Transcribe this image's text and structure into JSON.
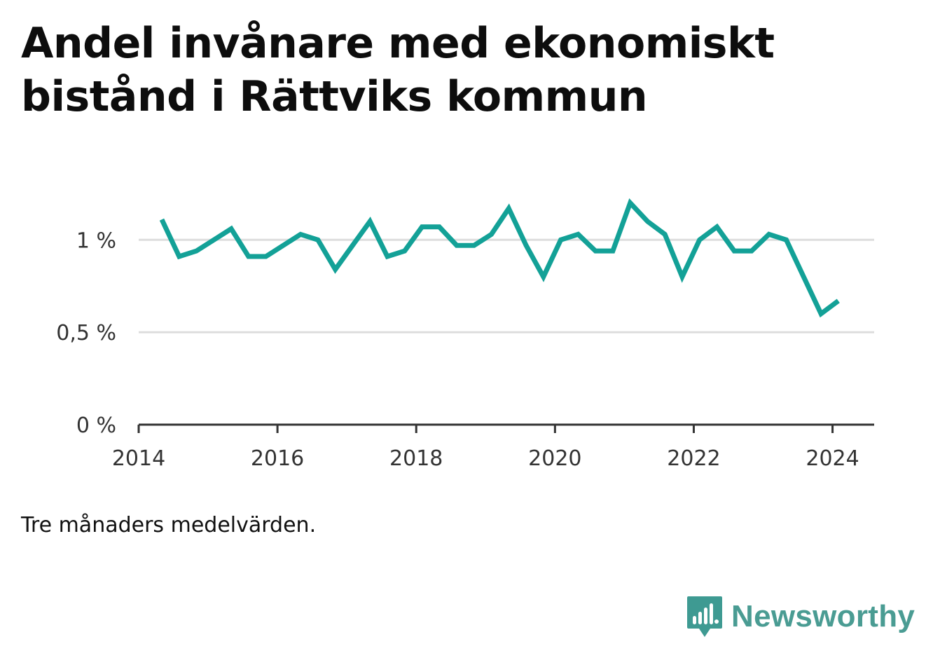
{
  "title": "Andel invånare med ekonomiskt bistånd i Rättviks kommun",
  "note": "Tre månaders medelvärden.",
  "brand": {
    "name": "Newsworthy",
    "icon": "newsworthy-logo-icon",
    "color": "#3e9a92"
  },
  "colors": {
    "line": "#13a197",
    "grid": "#dddddd",
    "axis": "#333333"
  },
  "chart_data": {
    "type": "line",
    "title": "Andel invånare med ekonomiskt bistånd i Rättviks kommun",
    "xlabel": "",
    "ylabel": "",
    "xlim": [
      2014.0,
      2024.6
    ],
    "ylim": [
      0,
      1.35
    ],
    "x_ticks": [
      2014,
      2016,
      2018,
      2020,
      2022,
      2024
    ],
    "x_tick_labels": [
      "2014",
      "2016",
      "2018",
      "2020",
      "2022",
      "2024"
    ],
    "y_ticks": [
      0,
      0.5,
      1
    ],
    "y_tick_labels": [
      "0 %",
      "0,5 %",
      "1 %"
    ],
    "grid": true,
    "series": [
      {
        "x": [
          "2014-05",
          "2014-08",
          "2014-11",
          "2015-02",
          "2015-05",
          "2015-08",
          "2015-11",
          "2016-02",
          "2016-05",
          "2016-08",
          "2016-11",
          "2017-02",
          "2017-05",
          "2017-08",
          "2017-11",
          "2018-02",
          "2018-05",
          "2018-08",
          "2018-11",
          "2019-02",
          "2019-05",
          "2019-08",
          "2019-11",
          "2020-02",
          "2020-05",
          "2020-08",
          "2020-11",
          "2021-02",
          "2021-05",
          "2021-08",
          "2021-11",
          "2022-02",
          "2022-05",
          "2022-08",
          "2022-11",
          "2023-02",
          "2023-05",
          "2023-08",
          "2023-11",
          "2024-02"
        ],
        "values": [
          1.11,
          0.91,
          0.94,
          1.0,
          1.06,
          0.91,
          0.91,
          0.97,
          1.03,
          1.0,
          0.84,
          0.97,
          1.1,
          0.91,
          0.94,
          1.07,
          1.07,
          0.97,
          0.97,
          1.03,
          1.17,
          0.97,
          0.8,
          1.0,
          1.03,
          0.94,
          0.94,
          1.2,
          1.1,
          1.03,
          0.8,
          1.0,
          1.07,
          0.94,
          0.94,
          1.03,
          1.0,
          0.8,
          0.6,
          0.67
        ]
      }
    ]
  }
}
